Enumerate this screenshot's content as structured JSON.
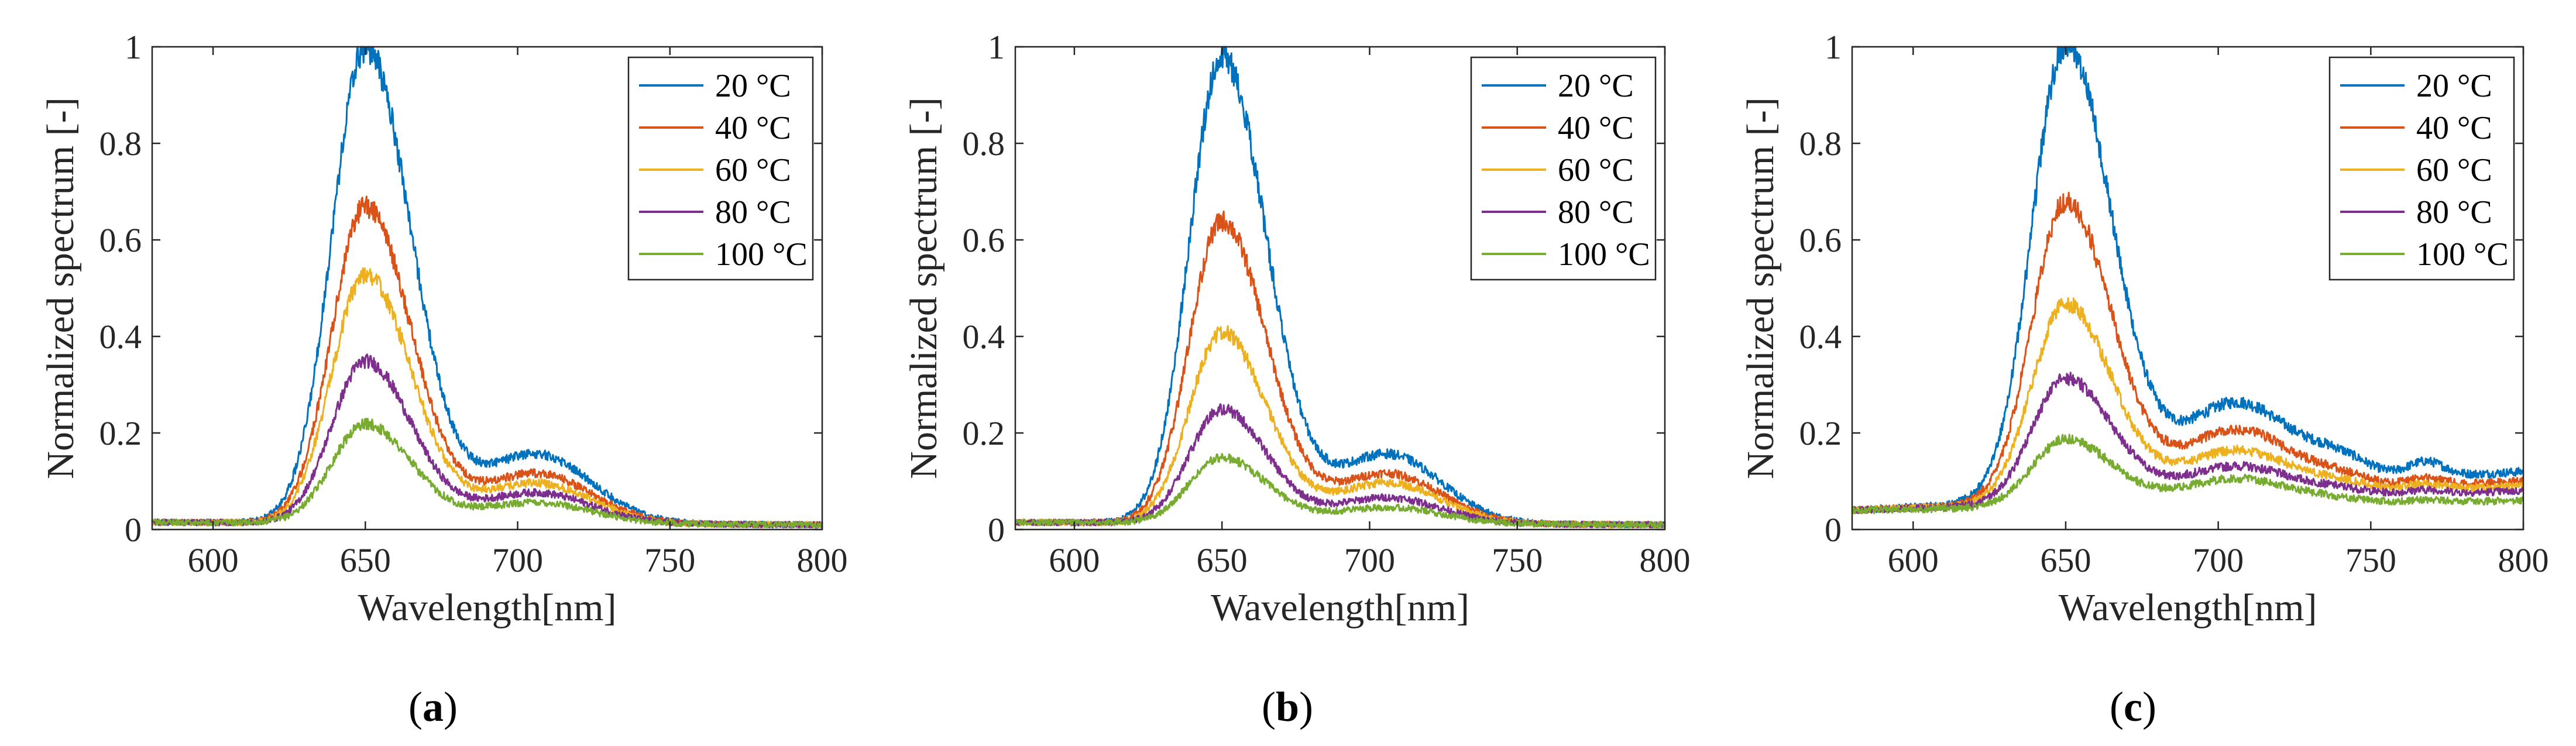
{
  "chart_data": [
    {
      "type": "line",
      "panel_label": "a",
      "xlabel": "Wavelength[nm]",
      "ylabel": "Normalized spectrum [-]",
      "xlim": [
        580,
        800
      ],
      "ylim": [
        0,
        1
      ],
      "xticks": [
        "600",
        "650",
        "700",
        "750",
        "800"
      ],
      "yticks": [
        "0",
        "0.2",
        "0.4",
        "0.6",
        "0.8",
        "1"
      ],
      "legend_position": "top-right",
      "series": [
        {
          "name": "20 °C",
          "color": "#0072BD",
          "peak": 1.0,
          "shoulder": 0.15,
          "base_start": 0.015,
          "base_end": 0.01,
          "second_bump": 0.0
        },
        {
          "name": "40 °C",
          "color": "#D95319",
          "peak": 0.67,
          "shoulder": 0.11,
          "base_start": 0.015,
          "base_end": 0.01,
          "second_bump": 0.0
        },
        {
          "name": "60 °C",
          "color": "#EDB120",
          "peak": 0.53,
          "shoulder": 0.09,
          "base_start": 0.015,
          "base_end": 0.01,
          "second_bump": 0.0
        },
        {
          "name": "80 °C",
          "color": "#7E2F8E",
          "peak": 0.35,
          "shoulder": 0.07,
          "base_start": 0.015,
          "base_end": 0.01,
          "second_bump": 0.0
        },
        {
          "name": "100 °C",
          "color": "#77AC30",
          "peak": 0.22,
          "shoulder": 0.05,
          "base_start": 0.015,
          "base_end": 0.01,
          "second_bump": 0.0
        }
      ]
    },
    {
      "type": "line",
      "panel_label": "b",
      "xlabel": "Wavelength[nm]",
      "ylabel": "Normalized spectrum [-]",
      "xlim": [
        580,
        800
      ],
      "ylim": [
        0,
        1
      ],
      "xticks": [
        "600",
        "650",
        "700",
        "750",
        "800"
      ],
      "yticks": [
        "0",
        "0.2",
        "0.4",
        "0.6",
        "0.8",
        "1"
      ],
      "legend_position": "top-right",
      "series": [
        {
          "name": "20 °C",
          "color": "#0072BD",
          "peak": 0.98,
          "shoulder": 0.15,
          "base_start": 0.015,
          "base_end": 0.01,
          "second_bump": 0.0
        },
        {
          "name": "40 °C",
          "color": "#D95319",
          "peak": 0.64,
          "shoulder": 0.11,
          "base_start": 0.015,
          "base_end": 0.01,
          "second_bump": 0.0
        },
        {
          "name": "60 °C",
          "color": "#EDB120",
          "peak": 0.41,
          "shoulder": 0.09,
          "base_start": 0.015,
          "base_end": 0.01,
          "second_bump": 0.0
        },
        {
          "name": "80 °C",
          "color": "#7E2F8E",
          "peak": 0.25,
          "shoulder": 0.06,
          "base_start": 0.015,
          "base_end": 0.01,
          "second_bump": 0.0
        },
        {
          "name": "100 °C",
          "color": "#77AC30",
          "peak": 0.15,
          "shoulder": 0.04,
          "base_start": 0.015,
          "base_end": 0.01,
          "second_bump": 0.0
        }
      ]
    },
    {
      "type": "line",
      "panel_label": "c",
      "xlabel": "Wavelength[nm]",
      "ylabel": "Normalized spectrum [-]",
      "xlim": [
        580,
        800
      ],
      "ylim": [
        0,
        1
      ],
      "xticks": [
        "600",
        "650",
        "700",
        "750",
        "800"
      ],
      "yticks": [
        "0",
        "0.2",
        "0.4",
        "0.6",
        "0.8",
        "1"
      ],
      "legend_position": "top-right",
      "series": [
        {
          "name": "20 °C",
          "color": "#0072BD",
          "peak": 0.98,
          "shoulder": 0.22,
          "base_start": 0.04,
          "base_end": 0.12,
          "second_bump": 0.04
        },
        {
          "name": "40 °C",
          "color": "#D95319",
          "peak": 0.66,
          "shoulder": 0.17,
          "base_start": 0.04,
          "base_end": 0.1,
          "second_bump": 0.02
        },
        {
          "name": "60 °C",
          "color": "#EDB120",
          "peak": 0.45,
          "shoulder": 0.13,
          "base_start": 0.04,
          "base_end": 0.09,
          "second_bump": 0.015
        },
        {
          "name": "80 °C",
          "color": "#7E2F8E",
          "peak": 0.3,
          "shoulder": 0.1,
          "base_start": 0.04,
          "base_end": 0.08,
          "second_bump": 0.01
        },
        {
          "name": "100 °C",
          "color": "#77AC30",
          "peak": 0.18,
          "shoulder": 0.08,
          "base_start": 0.04,
          "base_end": 0.06,
          "second_bump": 0.005
        }
      ]
    }
  ]
}
